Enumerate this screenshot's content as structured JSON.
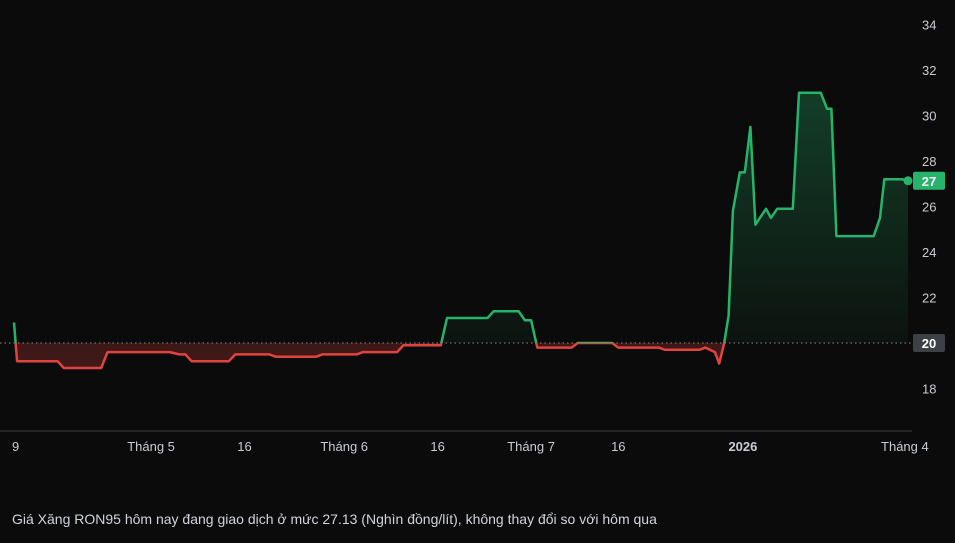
{
  "chart_data": {
    "type": "area",
    "baseline": 20,
    "last_value": 27.13,
    "last_label": "27",
    "baseline_label": "20",
    "ylim": [
      17,
      35
    ],
    "y_ticks": [
      "18",
      "20",
      "22",
      "24",
      "26",
      "28",
      "30",
      "32",
      "34"
    ],
    "x_ticks": [
      {
        "label": "9",
        "t": 0,
        "bold": false
      },
      {
        "label": "Tháng 5",
        "t": 22,
        "bold": false
      },
      {
        "label": "16",
        "t": 37,
        "bold": false
      },
      {
        "label": "Tháng 6",
        "t": 53,
        "bold": false
      },
      {
        "label": "16",
        "t": 68,
        "bold": false
      },
      {
        "label": "Tháng 7",
        "t": 83,
        "bold": false
      },
      {
        "label": "16",
        "t": 97,
        "bold": false
      },
      {
        "label": "2026",
        "t": 117,
        "bold": true
      },
      {
        "label": "Tháng 4",
        "t": 143,
        "bold": false
      }
    ],
    "colors": {
      "up": "#26b36a",
      "down": "#e0443e",
      "baseline": "#8a8d93",
      "axis": "#3a3d42",
      "background": "#0b0b0b"
    },
    "points": [
      [
        0,
        20.9
      ],
      [
        0.5,
        19.2
      ],
      [
        7,
        19.2
      ],
      [
        8,
        18.9
      ],
      [
        14,
        18.9
      ],
      [
        15,
        19.6
      ],
      [
        25,
        19.6
      ],
      [
        26.5,
        19.5
      ],
      [
        27.5,
        19.5
      ],
      [
        28.5,
        19.2
      ],
      [
        34.5,
        19.2
      ],
      [
        35.5,
        19.5
      ],
      [
        41,
        19.5
      ],
      [
        42,
        19.4
      ],
      [
        48.5,
        19.4
      ],
      [
        49.5,
        19.5
      ],
      [
        55,
        19.5
      ],
      [
        56,
        19.6
      ],
      [
        61.5,
        19.6
      ],
      [
        62.5,
        19.9
      ],
      [
        68.5,
        19.9
      ],
      [
        69.5,
        21.1
      ],
      [
        76,
        21.1
      ],
      [
        77,
        21.4
      ],
      [
        81,
        21.4
      ],
      [
        82,
        21.0
      ],
      [
        83,
        21.0
      ],
      [
        84,
        19.8
      ],
      [
        89.5,
        19.8
      ],
      [
        90.5,
        20.0
      ],
      [
        96,
        20.0
      ],
      [
        97,
        19.8
      ],
      [
        103.5,
        19.8
      ],
      [
        104.5,
        19.7
      ],
      [
        110,
        19.7
      ],
      [
        111,
        19.8
      ],
      [
        112.5,
        19.6
      ],
      [
        113.2,
        19.1
      ],
      [
        114,
        20.0
      ],
      [
        114.7,
        21.2
      ],
      [
        115.4,
        25.8
      ],
      [
        116.5,
        27.5
      ],
      [
        117.3,
        27.5
      ],
      [
        118.2,
        29.5
      ],
      [
        119,
        25.2
      ],
      [
        120.7,
        25.9
      ],
      [
        121.5,
        25.5
      ],
      [
        122.5,
        25.9
      ],
      [
        125,
        25.9
      ],
      [
        126,
        31.0
      ],
      [
        129.5,
        31.0
      ],
      [
        130.5,
        30.3
      ],
      [
        131.2,
        30.3
      ],
      [
        132,
        24.7
      ],
      [
        138,
        24.7
      ],
      [
        139,
        25.5
      ],
      [
        139.7,
        27.2
      ],
      [
        142.5,
        27.2
      ],
      [
        143.5,
        27.13
      ]
    ]
  },
  "caption": "Giá Xăng RON95 hôm nay đang giao dịch ở mức 27.13 (Nghìn đồng/lít), không thay đổi so với hôm qua"
}
